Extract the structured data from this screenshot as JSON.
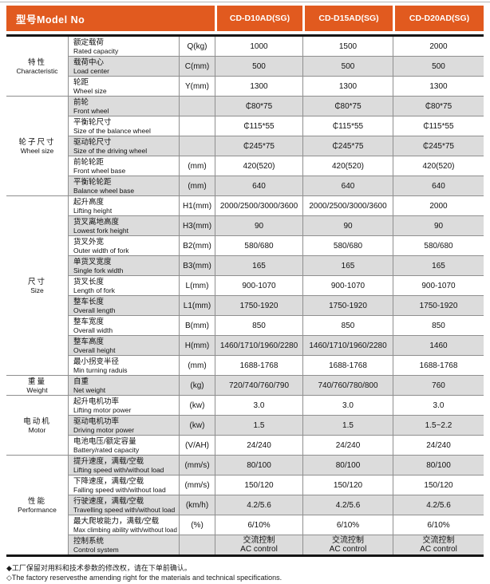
{
  "accent_color": "#E15A1F",
  "row_alt_color": "#DCDCDC",
  "header": {
    "title": "型号Model No",
    "models": [
      "CD-D10AD(SG)",
      "CD-D15AD(SG)",
      "CD-D20AD(SG)"
    ]
  },
  "groups": [
    {
      "name_cn": "特性",
      "name_en": "Characteristic",
      "rows": [
        {
          "cn": "额定载荷",
          "en": "Rated capacity",
          "sym": "Q(kg)",
          "values": [
            "1000",
            "1500",
            "2000"
          ]
        },
        {
          "cn": "载荷中心",
          "en": "Load center",
          "sym": "C(mm)",
          "values": [
            "500",
            "500",
            "500"
          ]
        },
        {
          "cn": "轮距",
          "en": "Wheel size",
          "sym": "Y(mm)",
          "values": [
            "1300",
            "1300",
            "1300"
          ]
        }
      ]
    },
    {
      "name_cn": "轮子尺寸",
      "name_en": "Wheel size",
      "rows": [
        {
          "cn": "前轮",
          "en": "Front wheel",
          "sym": "",
          "values": [
            "₵80*75",
            "₵80*75",
            "₵80*75"
          ]
        },
        {
          "cn": "平衡轮尺寸",
          "en": "Size of the balance wheel",
          "sym": "",
          "values": [
            "₵115*55",
            "₵115*55",
            "₵115*55"
          ]
        },
        {
          "cn": "驱动轮尺寸",
          "en": "Size of the driving wheel",
          "sym": "",
          "values": [
            "₵245*75",
            "₵245*75",
            "₵245*75"
          ]
        },
        {
          "cn": "前轮轮距",
          "en": "Front wheel base",
          "sym": "(mm)",
          "values": [
            "420(520)",
            "420(520)",
            "420(520)"
          ]
        },
        {
          "cn": "平衡轮轮距",
          "en": "Balance wheel base",
          "sym": "(mm)",
          "values": [
            "640",
            "640",
            "640"
          ]
        }
      ]
    },
    {
      "name_cn": "尺寸",
      "name_en": "Size",
      "rows": [
        {
          "cn": "起升高度",
          "en": "Lifting height",
          "sym": "H1(mm)",
          "values": [
            "2000/2500/3000/3600",
            "2000/2500/3000/3600",
            "2000"
          ]
        },
        {
          "cn": "货叉离地高度",
          "en": "Lowest fork height",
          "sym": "H3(mm)",
          "values": [
            "90",
            "90",
            "90"
          ]
        },
        {
          "cn": "货叉外宽",
          "en": "Outer width of fork",
          "sym": "B2(mm)",
          "values": [
            "580/680",
            "580/680",
            "580/680"
          ]
        },
        {
          "cn": "单货叉宽度",
          "en": "Single fork width",
          "sym": "B3(mm)",
          "values": [
            "165",
            "165",
            "165"
          ]
        },
        {
          "cn": "货叉长度",
          "en": "Length of fork",
          "sym": "L(mm)",
          "values": [
            "900-1070",
            "900-1070",
            "900-1070"
          ]
        },
        {
          "cn": "整车长度",
          "en": "Overall length",
          "sym": "L1(mm)",
          "values": [
            "1750-1920",
            "1750-1920",
            "1750-1920"
          ]
        },
        {
          "cn": "整车宽度",
          "en": "Overall width",
          "sym": "B(mm)",
          "values": [
            "850",
            "850",
            "850"
          ]
        },
        {
          "cn": "整车高度",
          "en": "Overall height",
          "sym": "H(mm)",
          "values": [
            "1460/1710/1960/2280",
            "1460/1710/1960/2280",
            "1460"
          ]
        },
        {
          "cn": "最小拐变半径",
          "en": "Min turning raduis",
          "sym": "(mm)",
          "values": [
            "1688-1768",
            "1688-1768",
            "1688-1768"
          ]
        }
      ]
    },
    {
      "name_cn": "重量",
      "name_en": "Weight",
      "rows": [
        {
          "cn": "自重",
          "en": "Net weight",
          "sym": "(kg)",
          "values": [
            "720/740/760/790",
            "740/760/780/800",
            "760"
          ]
        }
      ]
    },
    {
      "name_cn": "电动机",
      "name_en": "Motor",
      "rows": [
        {
          "cn": "起升电机功率",
          "en": "Lifting motor power",
          "sym": "(kw)",
          "values": [
            "3.0",
            "3.0",
            "3.0"
          ]
        },
        {
          "cn": "驱动电机功率",
          "en": "Driving motor power",
          "sym": "(kw)",
          "values": [
            "1.5",
            "1.5",
            "1.5~2.2"
          ]
        },
        {
          "cn": "电池电压/额定容量",
          "en": "Battery/rated capacity",
          "sym": "(V/AH)",
          "values": [
            "24/240",
            "24/240",
            "24/240"
          ]
        }
      ]
    },
    {
      "name_cn": "性能",
      "name_en": "Performance",
      "rows": [
        {
          "cn": "提升速度，满载/空载",
          "en": "Lifting speed with/without load",
          "sym": "(mm/s)",
          "values": [
            "80/100",
            "80/100",
            "80/100"
          ]
        },
        {
          "cn": "下降速度，满载/空载",
          "en": "Falling speed with/without load",
          "sym": "(mm/s)",
          "values": [
            "150/120",
            "150/120",
            "150/120"
          ]
        },
        {
          "cn": "行驶速度，满载/空载",
          "en": "Travelling speed with/without load",
          "sym": "(km/h)",
          "values": [
            "4.2/5.6",
            "4.2/5.6",
            "4.2/5.6"
          ]
        },
        {
          "cn": "最大爬坡能力，满载/空载",
          "en": "Max climbing ability with/without load",
          "sym": "(%)",
          "values": [
            "6/10%",
            "6/10%",
            "6/10%"
          ]
        },
        {
          "cn": "控制系统",
          "en": "Control system",
          "sym": "",
          "values": [
            "交流控制\nAC control",
            "交流控制\nAC control",
            "交流控制\nAC control"
          ]
        }
      ]
    }
  ],
  "footnotes": [
    "◆工厂保留对用料和技术参数的修改权，请在下单前确认。",
    "◇The factory reservesthe amending right for the materials and technical specifications."
  ]
}
